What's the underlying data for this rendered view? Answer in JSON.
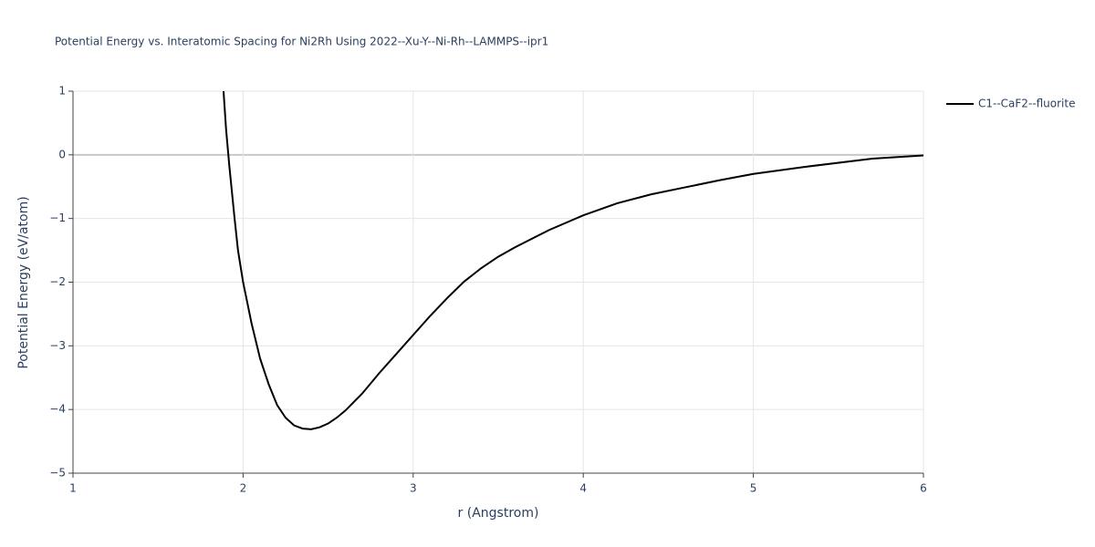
{
  "chart_data": {
    "type": "line",
    "title": "Potential Energy vs. Interatomic Spacing for Ni2Rh Using 2022--Xu-Y--Ni-Rh--LAMMPS--ipr1",
    "x_label": "r (Angstrom)",
    "y_label": "Potential Energy (eV/atom)",
    "x": [
      1.885,
      1.9,
      1.92,
      1.95,
      1.97,
      2.0,
      2.05,
      2.1,
      2.15,
      2.2,
      2.25,
      2.3,
      2.35,
      2.4,
      2.45,
      2.5,
      2.55,
      2.6,
      2.7,
      2.8,
      2.9,
      3.0,
      3.1,
      3.2,
      3.3,
      3.4,
      3.5,
      3.6,
      3.8,
      4.0,
      4.2,
      4.4,
      4.6,
      4.8,
      5.0,
      5.3,
      5.7,
      6.0
    ],
    "series": [
      {
        "name": "C1--CaF2--fluorite",
        "color": "#000000",
        "values": [
          1.0,
          0.4,
          -0.2,
          -1.0,
          -1.5,
          -2.0,
          -2.65,
          -3.2,
          -3.6,
          -3.93,
          -4.13,
          -4.25,
          -4.3,
          -4.31,
          -4.28,
          -4.22,
          -4.13,
          -4.02,
          -3.75,
          -3.43,
          -3.13,
          -2.83,
          -2.53,
          -2.25,
          -1.99,
          -1.78,
          -1.6,
          -1.45,
          -1.18,
          -0.95,
          -0.76,
          -0.62,
          -0.51,
          -0.4,
          -0.3,
          -0.19,
          -0.06,
          -0.01
        ]
      }
    ],
    "xlim": [
      1,
      6
    ],
    "ylim": [
      -5,
      1
    ],
    "xticks": [
      1,
      2,
      3,
      4,
      5,
      6
    ],
    "yticks": [
      1,
      0,
      {
        "value": -1,
        "label": "−1"
      },
      {
        "value": -2,
        "label": "−2"
      },
      {
        "value": -3,
        "label": "−3"
      },
      {
        "value": -4,
        "label": "−4"
      },
      {
        "value": -5,
        "label": "−5"
      }
    ],
    "grid": true
  }
}
